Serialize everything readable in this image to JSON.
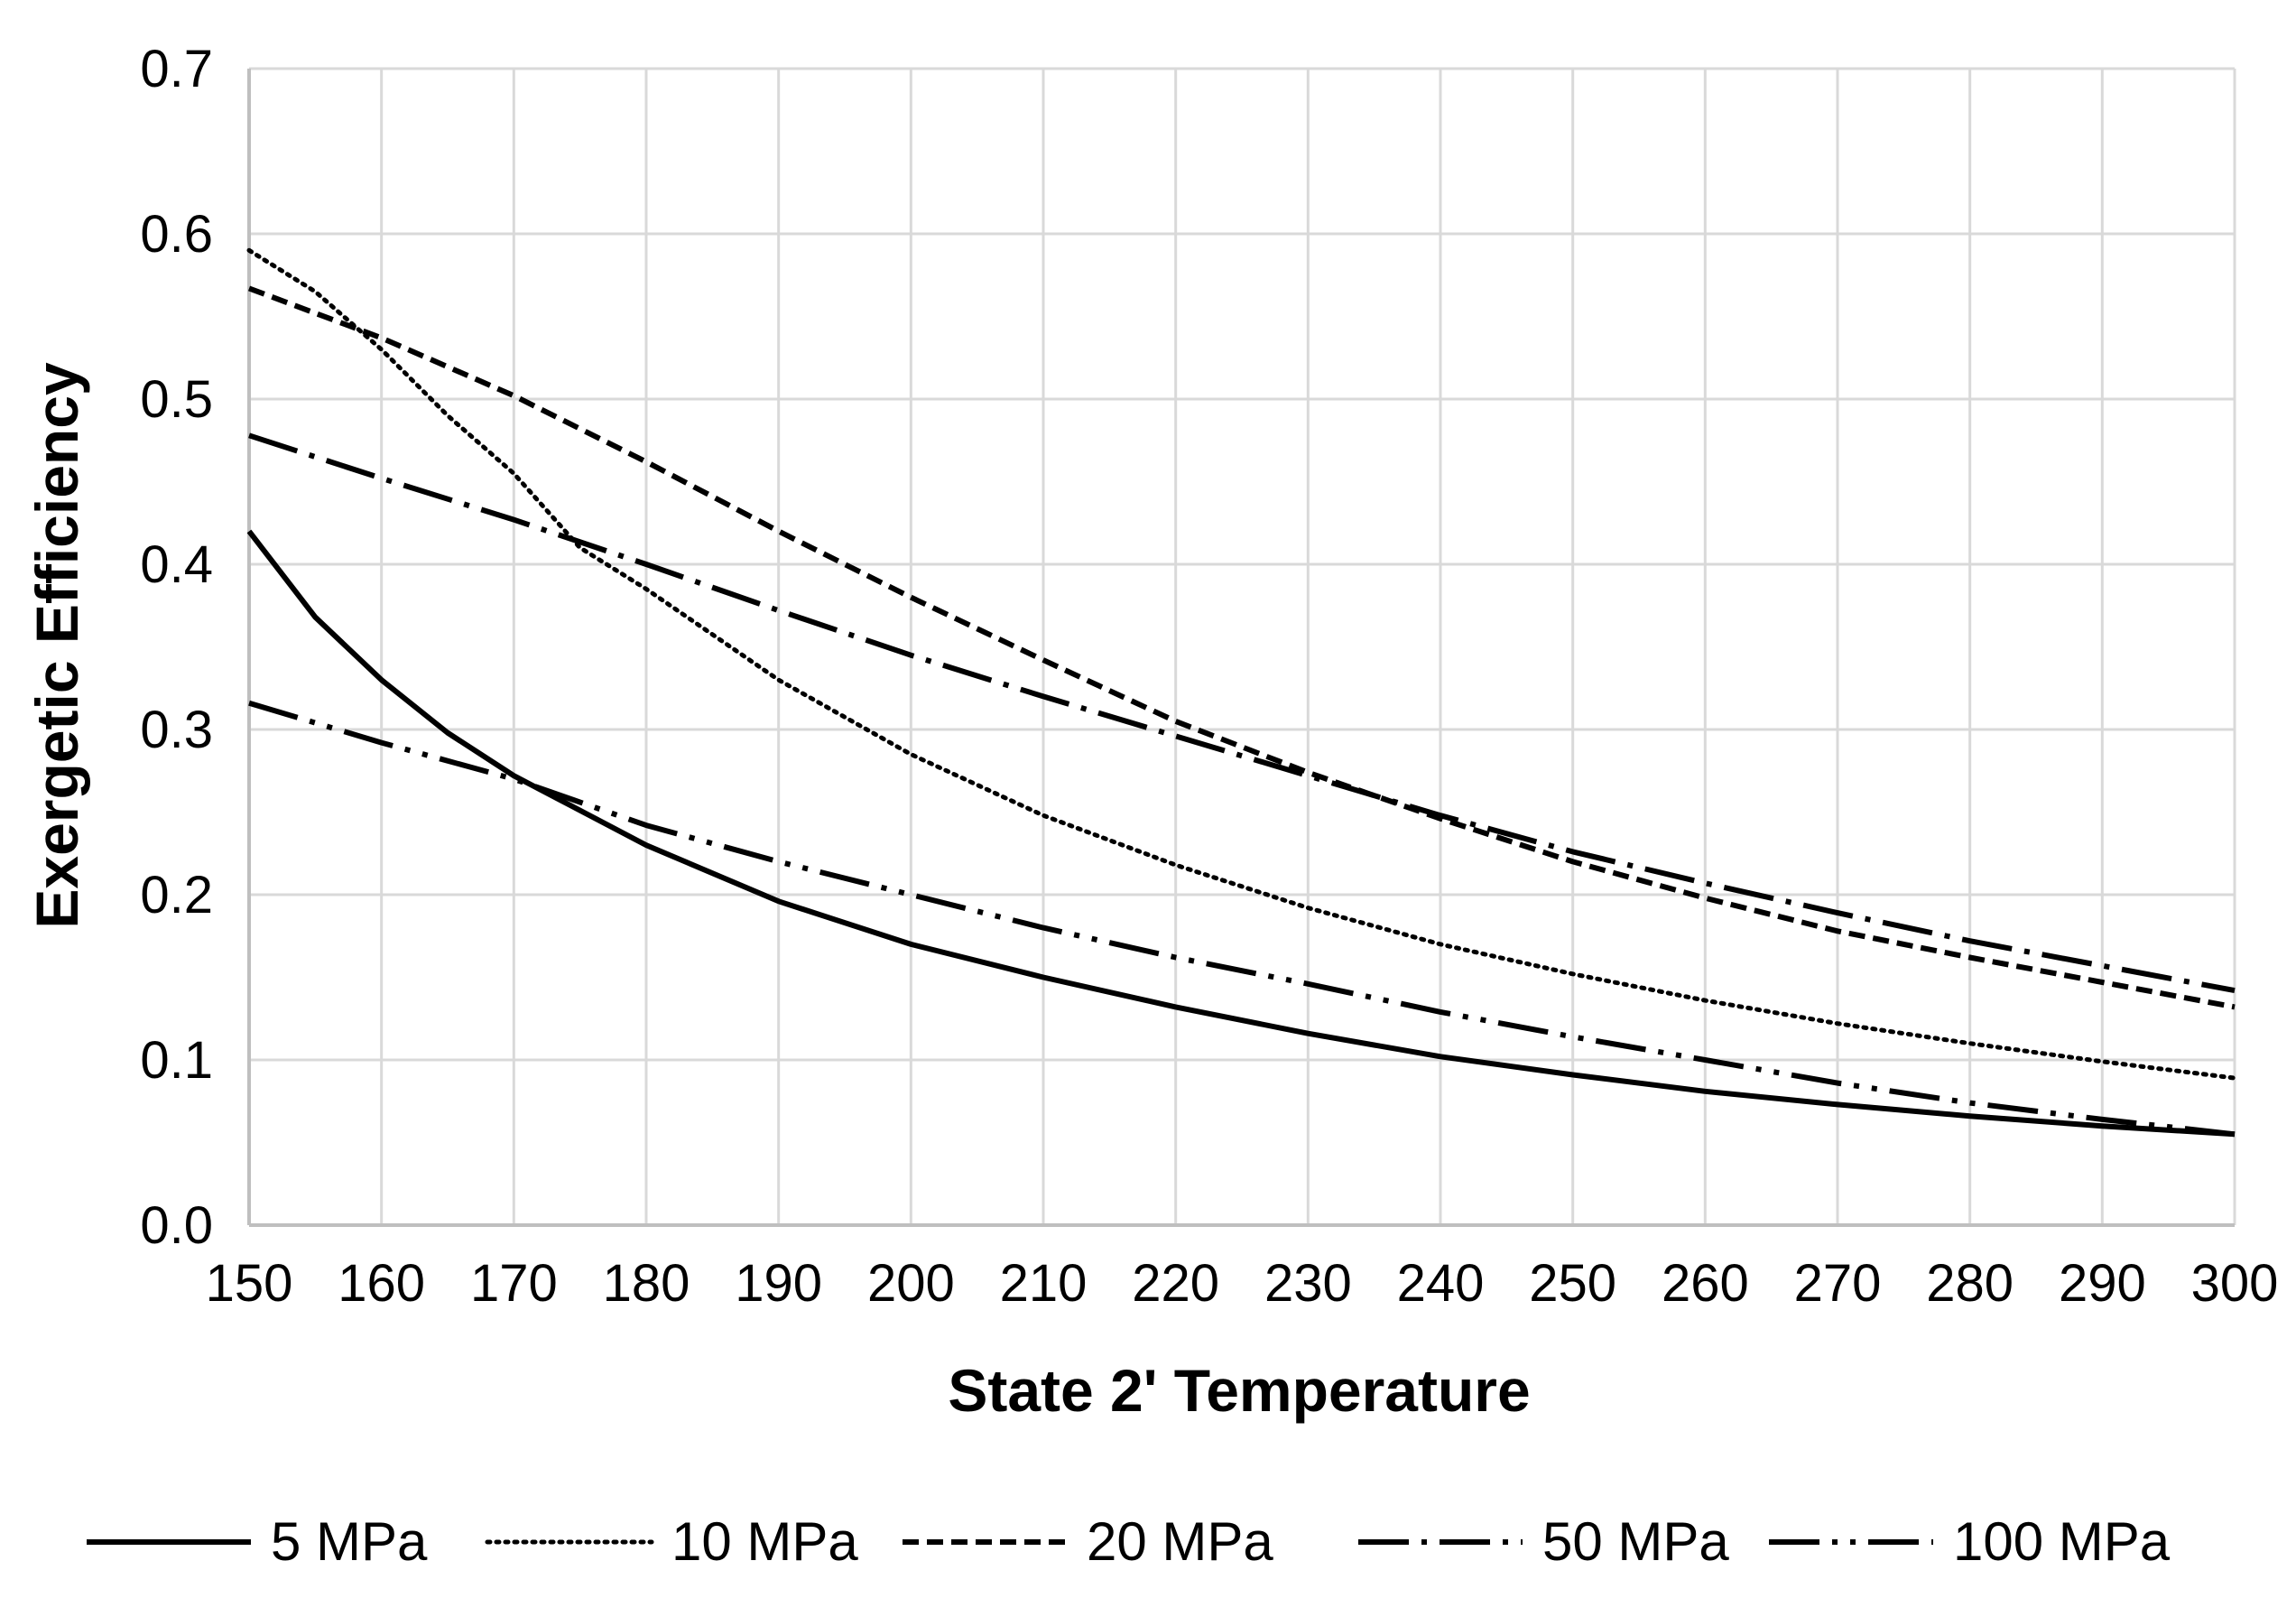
{
  "chart_data": {
    "type": "line",
    "title": "",
    "xlabel": "State 2' Temperature",
    "ylabel": "Exergetic Efficiency",
    "xlim": [
      150,
      300
    ],
    "ylim": [
      0.0,
      0.7
    ],
    "grid": true,
    "legend_position": "bottom",
    "x_ticks": [
      150,
      160,
      170,
      180,
      190,
      200,
      210,
      220,
      230,
      240,
      250,
      260,
      270,
      280,
      290,
      300
    ],
    "x_tick_labels": [
      "150",
      "160",
      "170",
      "180",
      "190",
      "200",
      "210",
      "220",
      "230",
      "240",
      "250",
      "260",
      "270",
      "280",
      "290",
      "300"
    ],
    "y_ticks": [
      0.0,
      0.1,
      0.2,
      0.3,
      0.4,
      0.5,
      0.6,
      0.7
    ],
    "y_tick_labels": [
      "0.0",
      "0.1",
      "0.2",
      "0.3",
      "0.4",
      "0.5",
      "0.6",
      "0.7"
    ],
    "series": [
      {
        "name": "5 MPa",
        "dash": "solid",
        "x": [
          150,
          155,
          160,
          165,
          170,
          180,
          190,
          200,
          210,
          220,
          230,
          240,
          250,
          260,
          270,
          280,
          290,
          300
        ],
        "values": [
          0.42,
          0.368,
          0.33,
          0.298,
          0.272,
          0.23,
          0.196,
          0.17,
          0.15,
          0.132,
          0.116,
          0.102,
          0.091,
          0.081,
          0.073,
          0.066,
          0.06,
          0.055
        ]
      },
      {
        "name": "10 MPa",
        "dash": "dot",
        "x": [
          150,
          155,
          160,
          165,
          170,
          175,
          180,
          190,
          200,
          210,
          220,
          230,
          240,
          250,
          260,
          270,
          280,
          290,
          300
        ],
        "values": [
          0.59,
          0.565,
          0.53,
          0.49,
          0.455,
          0.41,
          0.385,
          0.33,
          0.285,
          0.248,
          0.218,
          0.192,
          0.17,
          0.152,
          0.136,
          0.122,
          0.11,
          0.099,
          0.089
        ]
      },
      {
        "name": "20 MPa",
        "dash": "dash",
        "x": [
          150,
          160,
          170,
          180,
          190,
          200,
          210,
          220,
          230,
          240,
          250,
          260,
          270,
          280,
          290,
          300
        ],
        "values": [
          0.567,
          0.537,
          0.502,
          0.462,
          0.42,
          0.38,
          0.342,
          0.305,
          0.274,
          0.246,
          0.22,
          0.198,
          0.178,
          0.162,
          0.147,
          0.132
        ]
      },
      {
        "name": "50 MPa",
        "dash": "longdash-dot",
        "x": [
          150,
          160,
          170,
          180,
          190,
          200,
          210,
          220,
          230,
          240,
          250,
          260,
          270,
          280,
          290,
          300
        ],
        "values": [
          0.478,
          0.452,
          0.427,
          0.4,
          0.372,
          0.345,
          0.32,
          0.296,
          0.272,
          0.248,
          0.226,
          0.207,
          0.189,
          0.172,
          0.157,
          0.142
        ]
      },
      {
        "name": "100 MPa",
        "dash": "longdash-dot-dot",
        "x": [
          150,
          160,
          170,
          180,
          190,
          200,
          210,
          220,
          230,
          240,
          250,
          260,
          270,
          280,
          290,
          300
        ],
        "values": [
          0.316,
          0.292,
          0.27,
          0.242,
          0.22,
          0.2,
          0.18,
          0.162,
          0.146,
          0.129,
          0.114,
          0.1,
          0.086,
          0.074,
          0.064,
          0.055
        ]
      }
    ]
  }
}
